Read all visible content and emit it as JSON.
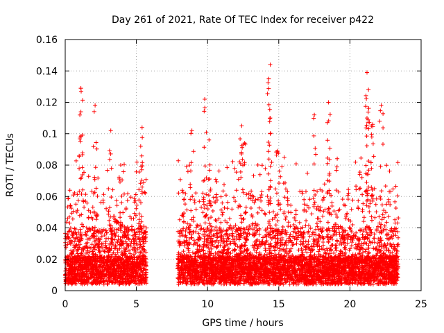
{
  "chart_data": {
    "type": "scatter",
    "title": "Day 261 of 2021, Rate Of TEC Index for receiver p422",
    "xlabel": "GPS time / hours",
    "ylabel": "ROTI / TECUs",
    "xlim": [
      0,
      25
    ],
    "ylim": [
      0,
      0.16
    ],
    "x_ticks": [
      "0",
      "5",
      "10",
      "15",
      "20",
      "25"
    ],
    "y_ticks": [
      "0",
      "0.02",
      "0.04",
      "0.06",
      "0.08",
      "0.1",
      "0.12",
      "0.14",
      "0.16"
    ],
    "grid": true,
    "marker": "plus",
    "series": [
      {
        "color": "#ff0000",
        "segments": [
          [
            0.0,
            5.7
          ],
          [
            7.9,
            23.4
          ]
        ],
        "peaks": [
          {
            "x": 1.1,
            "y": 0.129
          },
          {
            "x": 1.1,
            "y": 0.114
          },
          {
            "x": 2.1,
            "y": 0.118
          },
          {
            "x": 3.2,
            "y": 0.102
          },
          {
            "x": 3.9,
            "y": 0.08
          },
          {
            "x": 5.4,
            "y": 0.104
          },
          {
            "x": 5.3,
            "y": 0.092
          },
          {
            "x": 8.9,
            "y": 0.102
          },
          {
            "x": 9.8,
            "y": 0.122
          },
          {
            "x": 10.1,
            "y": 0.096
          },
          {
            "x": 12.4,
            "y": 0.105
          },
          {
            "x": 12.6,
            "y": 0.094
          },
          {
            "x": 14.4,
            "y": 0.144
          },
          {
            "x": 14.3,
            "y": 0.135
          },
          {
            "x": 14.4,
            "y": 0.11
          },
          {
            "x": 14.9,
            "y": 0.089
          },
          {
            "x": 17.5,
            "y": 0.112
          },
          {
            "x": 18.5,
            "y": 0.12
          },
          {
            "x": 21.2,
            "y": 0.139
          },
          {
            "x": 21.2,
            "y": 0.11
          },
          {
            "x": 21.3,
            "y": 0.128
          },
          {
            "x": 22.2,
            "y": 0.118
          },
          {
            "x": 21.6,
            "y": 0.106
          }
        ]
      }
    ]
  }
}
